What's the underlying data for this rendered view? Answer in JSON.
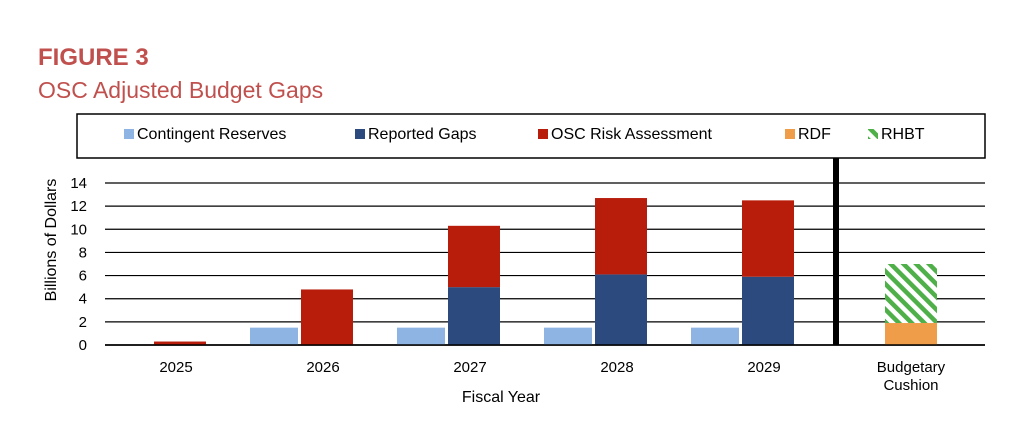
{
  "figure": {
    "label": "FIGURE 3",
    "title": "OSC Adjusted Budget Gaps"
  },
  "chart_data": {
    "type": "bar",
    "stacked": true,
    "xlabel": "Fiscal Year",
    "ylabel": "Billions of Dollars",
    "ylim": [
      0,
      14
    ],
    "yticks": [
      0,
      2,
      4,
      6,
      8,
      10,
      12,
      14
    ],
    "grid": "horizontal",
    "legend_position": "top",
    "gap_categories": [
      "2025",
      "2026",
      "2027",
      "2028",
      "2029"
    ],
    "cushion_category": [
      "Budgetary",
      "Cushion"
    ],
    "series": [
      {
        "name": "Contingent Reserves",
        "color": "#8eb4e3",
        "group": "gaps",
        "values": [
          0,
          1.5,
          1.5,
          1.5,
          1.5
        ]
      },
      {
        "name": "Reported Gaps",
        "color": "#2c4a7e",
        "group": "gaps",
        "values": [
          0,
          0,
          5.0,
          6.1,
          5.9
        ]
      },
      {
        "name": "OSC Risk Assessment",
        "color": "#b81d0b",
        "group": "gaps",
        "values": [
          0.3,
          4.8,
          5.3,
          6.6,
          6.6
        ]
      },
      {
        "name": "RDF",
        "color": "#f09d4a",
        "group": "cushion",
        "values": [
          1.9
        ]
      },
      {
        "name": "RHBT",
        "color": "#4fb04a",
        "group": "cushion",
        "pattern": "hatched",
        "values": [
          5.1
        ]
      }
    ]
  }
}
